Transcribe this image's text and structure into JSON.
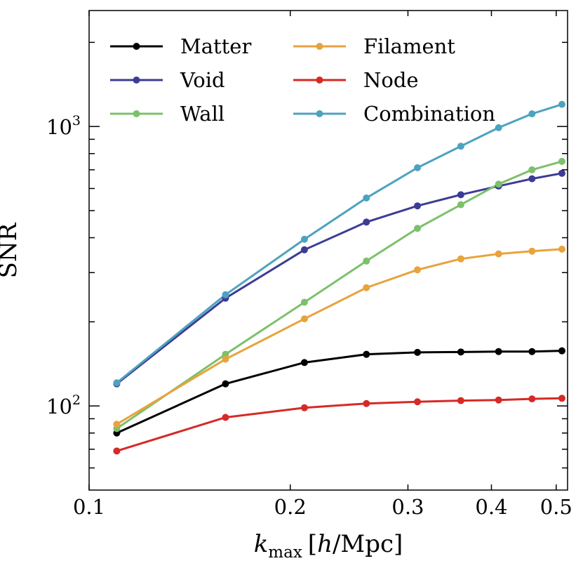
{
  "chart_data": {
    "type": "line",
    "xscale": "log",
    "yscale": "log",
    "xlim": [
      0.1,
      0.52
    ],
    "ylim": [
      50,
      2600
    ],
    "xlabel": {
      "main": "k",
      "sub": "max",
      "unit_open": "[",
      "unit_italic": "h",
      "unit_rest": "/Mpc]"
    },
    "ylabel": "SNR",
    "x_ticks": [
      {
        "value": 0.1,
        "label": "0.1"
      },
      {
        "value": 0.2,
        "label": "0.2"
      },
      {
        "value": 0.3,
        "label": "0.3"
      },
      {
        "value": 0.4,
        "label": "0.4"
      },
      {
        "value": 0.5,
        "label": "0.5"
      }
    ],
    "x_minor_ticks": [
      0.1,
      0.2,
      0.3,
      0.4,
      0.5
    ],
    "y_ticks": [
      {
        "value": 100,
        "base": "10",
        "exp": "2"
      },
      {
        "value": 1000,
        "base": "10",
        "exp": "3"
      }
    ],
    "y_minor_ticks": [
      60,
      70,
      80,
      90,
      200,
      300,
      400,
      500,
      600,
      700,
      800,
      900,
      2000
    ],
    "x": [
      0.11,
      0.16,
      0.21,
      0.26,
      0.31,
      0.36,
      0.41,
      0.46,
      0.51
    ],
    "series": [
      {
        "name": "Matter",
        "color": "#000000",
        "values": [
          80,
          120,
          143,
          153,
          155.5,
          156,
          156.5,
          156.5,
          157.5
        ]
      },
      {
        "name": "Void",
        "color": "#3c3c96",
        "values": [
          120,
          243,
          362,
          455,
          520,
          570,
          612,
          650,
          680
        ]
      },
      {
        "name": "Wall",
        "color": "#7dc06b",
        "values": [
          83,
          153,
          235,
          330,
          432,
          525,
          622,
          700,
          750
        ]
      },
      {
        "name": "Filament",
        "color": "#e8a33c",
        "values": [
          86,
          147,
          205,
          265,
          307,
          336,
          350,
          358,
          364
        ]
      },
      {
        "name": "Node",
        "color": "#d62a26",
        "values": [
          69,
          91,
          98.5,
          102,
          103.5,
          104.5,
          105,
          106,
          106.5
        ]
      },
      {
        "name": "Combination",
        "color": "#4da3bf",
        "values": [
          121,
          250,
          395,
          555,
          712,
          850,
          990,
          1110,
          1200
        ]
      }
    ],
    "legend": {
      "position": "top-left",
      "columns": 2
    }
  }
}
